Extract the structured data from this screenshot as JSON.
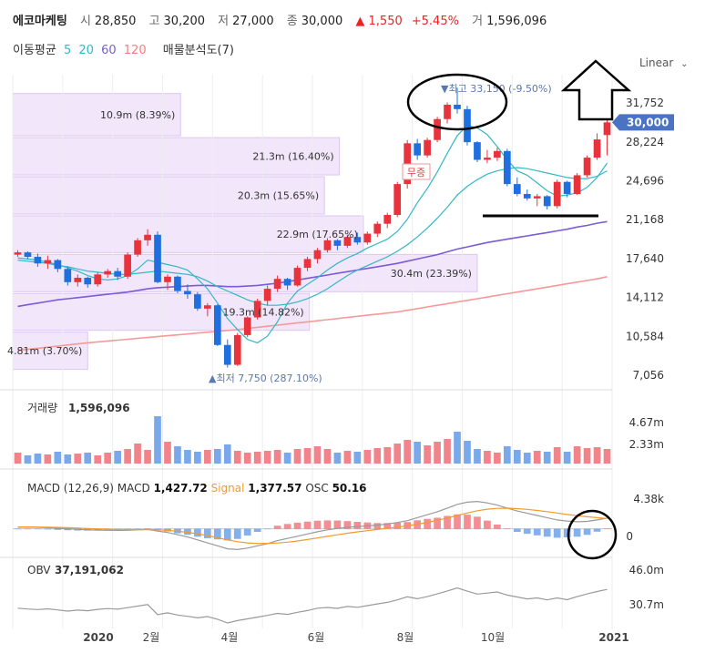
{
  "header": {
    "name": "에코마케팅",
    "open_label": "시",
    "open": "28,850",
    "high_label": "고",
    "high": "30,200",
    "low_label": "저",
    "low": "27,000",
    "close_label": "종",
    "close": "30,000",
    "change": "▲ 1,550",
    "change_pct": "+5.45%",
    "vol_label": "거",
    "vol": "1,596,096"
  },
  "indicators": {
    "ma_label": "이동평균",
    "ma5": "5",
    "ma20": "20",
    "ma60": "60",
    "ma120": "120",
    "vp_label": "매물분석도(7)"
  },
  "scale_toggle": "Linear",
  "colors": {
    "up": "#e8323c",
    "down": "#1f6fde",
    "ma5": "#33b7c7",
    "ma20": "#33b7c7",
    "ma60": "#7b5bd6",
    "ma120": "#f59a98",
    "profile": "#f2e6fb",
    "profile_border": "#dcc6ef",
    "price_tag": "#4a73c4",
    "signal": "#f39a2b",
    "gray_line": "#9a9a9a"
  },
  "chart_data": {
    "type": "candlestick",
    "price_axis": [
      "31,752",
      "28,224",
      "24,696",
      "21,168",
      "17,640",
      "14,112",
      "10,584",
      "7,056"
    ],
    "current_price_tag": "30,000",
    "price_range": [
      7056,
      33500
    ],
    "x_ticks": [
      "2020",
      "2월",
      "4월",
      "6월",
      "8월",
      "10월",
      "2021"
    ],
    "n_bars": 60,
    "candles": [
      [
        18000,
        18400,
        17800,
        18200
      ],
      [
        18200,
        18300,
        17600,
        17800
      ],
      [
        17800,
        18100,
        16900,
        17200
      ],
      [
        17200,
        17900,
        16700,
        17500
      ],
      [
        17500,
        17600,
        16400,
        16700
      ],
      [
        16700,
        16900,
        15200,
        15500
      ],
      [
        15500,
        16200,
        15100,
        15900
      ],
      [
        15900,
        16000,
        15000,
        15300
      ],
      [
        15300,
        16400,
        15100,
        16200
      ],
      [
        16200,
        16700,
        15900,
        16500
      ],
      [
        16500,
        16800,
        15700,
        16000
      ],
      [
        16000,
        18200,
        15800,
        18000
      ],
      [
        18000,
        19500,
        17800,
        19300
      ],
      [
        19300,
        20300,
        18800,
        19800
      ],
      [
        19800,
        20100,
        15400,
        15500
      ],
      [
        15500,
        16200,
        14800,
        16000
      ],
      [
        16000,
        16100,
        14500,
        14700
      ],
      [
        14700,
        15300,
        14000,
        14400
      ],
      [
        14400,
        14600,
        12900,
        13100
      ],
      [
        13100,
        13600,
        12400,
        13400
      ],
      [
        13400,
        13500,
        9700,
        9800
      ],
      [
        9800,
        10300,
        7750,
        8000
      ],
      [
        8000,
        10900,
        7900,
        10700
      ],
      [
        10700,
        12400,
        10500,
        12300
      ],
      [
        12300,
        14000,
        12100,
        13800
      ],
      [
        13800,
        15200,
        13400,
        14900
      ],
      [
        14900,
        16100,
        14600,
        15800
      ],
      [
        15800,
        15900,
        14800,
        15200
      ],
      [
        15200,
        17000,
        15100,
        16800
      ],
      [
        16800,
        17800,
        16500,
        17600
      ],
      [
        17600,
        18600,
        17200,
        18400
      ],
      [
        18400,
        19500,
        18200,
        19300
      ],
      [
        19300,
        19400,
        18400,
        18800
      ],
      [
        18800,
        19800,
        18600,
        19600
      ],
      [
        19600,
        20000,
        18900,
        19100
      ],
      [
        19100,
        20100,
        18900,
        19900
      ],
      [
        19900,
        21000,
        19600,
        20800
      ],
      [
        20800,
        21800,
        20400,
        21600
      ],
      [
        21600,
        24600,
        21400,
        24400
      ],
      [
        24400,
        28400,
        24000,
        28100
      ],
      [
        28100,
        28500,
        26600,
        27000
      ],
      [
        27000,
        28600,
        26800,
        28400
      ],
      [
        28400,
        30500,
        28200,
        30300
      ],
      [
        30300,
        31800,
        29900,
        31600
      ],
      [
        31600,
        33150,
        30800,
        31200
      ],
      [
        31200,
        31500,
        27900,
        28200
      ],
      [
        28200,
        28300,
        26400,
        26600
      ],
      [
        26600,
        27500,
        26300,
        26800
      ],
      [
        26800,
        27700,
        26500,
        27400
      ],
      [
        27400,
        27600,
        24200,
        24400
      ],
      [
        24400,
        25000,
        23300,
        23500
      ],
      [
        23500,
        23900,
        22900,
        23100
      ],
      [
        23100,
        23500,
        22400,
        23300
      ],
      [
        23300,
        23400,
        22100,
        22400
      ],
      [
        22400,
        24800,
        22200,
        24600
      ],
      [
        24600,
        24700,
        23200,
        23500
      ],
      [
        23500,
        25400,
        23400,
        25200
      ],
      [
        25200,
        27000,
        25000,
        26800
      ],
      [
        26800,
        29000,
        26600,
        28450
      ],
      [
        28850,
        30200,
        27000,
        30000
      ]
    ],
    "ma5": [
      17700,
      17600,
      17500,
      17300,
      17100,
      16800,
      16500,
      16100,
      15800,
      15700,
      15800,
      16100,
      16700,
      17500,
      17300,
      17100,
      16900,
      16600,
      15800,
      14900,
      13600,
      12200,
      11200,
      10300,
      10000,
      10600,
      11900,
      13600,
      14700,
      15300,
      15900,
      16600,
      17200,
      17700,
      18100,
      18600,
      19000,
      19400,
      20100,
      21200,
      22700,
      24000,
      25500,
      27200,
      28800,
      29700,
      29500,
      28900,
      27800,
      26600,
      25600,
      25200,
      24500,
      23800,
      23300,
      23400,
      23600,
      24100,
      25000,
      26300
    ],
    "ma20": [
      17500,
      17400,
      17300,
      17200,
      17000,
      16900,
      16700,
      16500,
      16400,
      16300,
      16200,
      16200,
      16300,
      16400,
      16500,
      16400,
      16300,
      16200,
      16000,
      15600,
      15100,
      14700,
      14300,
      13900,
      13600,
      13400,
      13400,
      13500,
      13700,
      14000,
      14400,
      14900,
      15500,
      16100,
      16600,
      17000,
      17400,
      17800,
      18300,
      18900,
      19600,
      20400,
      21300,
      22300,
      23400,
      24200,
      24800,
      25300,
      25600,
      25800,
      25900,
      25800,
      25600,
      25400,
      25200,
      25000,
      24900,
      24900,
      25100,
      25600
    ],
    "ma60": [
      13300,
      13450,
      13600,
      13750,
      13900,
      14000,
      14100,
      14200,
      14300,
      14400,
      14500,
      14600,
      14750,
      14900,
      15000,
      15050,
      15100,
      15150,
      15200,
      15200,
      15150,
      15100,
      15100,
      15150,
      15200,
      15300,
      15400,
      15550,
      15700,
      15850,
      16000,
      16150,
      16300,
      16450,
      16600,
      16750,
      16900,
      17050,
      17200,
      17400,
      17600,
      17800,
      18000,
      18250,
      18500,
      18700,
      18900,
      19100,
      19250,
      19400,
      19550,
      19700,
      19850,
      20000,
      20150,
      20300,
      20500,
      20650,
      20850,
      21000
    ],
    "ma120": [
      9300,
      9400,
      9500,
      9600,
      9700,
      9800,
      9900,
      10000,
      10080,
      10160,
      10240,
      10320,
      10400,
      10480,
      10560,
      10640,
      10720,
      10800,
      10880,
      10960,
      11040,
      11120,
      11200,
      11300,
      11400,
      11500,
      11600,
      11700,
      11800,
      11900,
      12000,
      12100,
      12200,
      12300,
      12400,
      12500,
      12600,
      12700,
      12800,
      12950,
      13100,
      13250,
      13400,
      13550,
      13700,
      13850,
      14000,
      14150,
      14300,
      14450,
      14600,
      14750,
      14900,
      15050,
      15200,
      15350,
      15500,
      15650,
      15800,
      16000
    ],
    "volume_profile": [
      {
        "label": "10.9m (8.39%)",
        "lo": 28700,
        "hi": 32700,
        "frac": 0.28
      },
      {
        "label": "21.3m (16.40%)",
        "lo": 25150,
        "hi": 28700,
        "frac": 0.545
      },
      {
        "label": "20.3m (15.65%)",
        "lo": 21600,
        "hi": 25150,
        "frac": 0.52
      },
      {
        "label": "22.9m (17.65%)",
        "lo": 18100,
        "hi": 21600,
        "frac": 0.585
      },
      {
        "label": "30.4m (23.39%)",
        "lo": 14550,
        "hi": 18100,
        "frac": 0.775
      },
      {
        "label": "19.3m (14.82%)",
        "lo": 11050,
        "hi": 14550,
        "frac": 0.495
      },
      {
        "label": "4.81m (3.70%)",
        "lo": 7500,
        "hi": 11050,
        "frac": 0.125
      }
    ],
    "annotations": {
      "high": "▼최고 33,150 (-9.50%)",
      "low": "▲최저 7,750 (287.10%)",
      "ex_rights": "무증"
    },
    "volume": {
      "title": "거래량",
      "value": "1,596,096",
      "axis": [
        "4.67m",
        "2.33m"
      ],
      "max": 5.4,
      "bars": [
        1.2,
        0.9,
        1.1,
        1.0,
        1.3,
        1.0,
        1.1,
        1.2,
        0.9,
        1.2,
        1.4,
        1.6,
        2.2,
        1.5,
        5.2,
        2.4,
        1.9,
        1.5,
        1.3,
        1.5,
        1.6,
        2.1,
        1.4,
        1.2,
        1.3,
        1.4,
        1.5,
        1.2,
        1.6,
        1.7,
        1.9,
        1.6,
        1.2,
        1.4,
        1.3,
        1.5,
        1.7,
        1.8,
        2.2,
        2.6,
        2.4,
        2.0,
        2.4,
        2.7,
        3.5,
        2.5,
        1.6,
        1.4,
        1.2,
        1.9,
        1.5,
        1.2,
        1.4,
        1.3,
        1.8,
        1.3,
        1.9,
        1.7,
        1.8,
        1.6
      ]
    },
    "macd": {
      "title": "MACD (12,26,9)",
      "macd_label": "MACD",
      "macd_value": "1,427.72",
      "signal_label": "Signal",
      "signal_value": "1,377.57",
      "osc_label": "OSC",
      "osc_value": "50.16",
      "axis": [
        "4.38k",
        "0"
      ],
      "range": [
        -3000,
        5000
      ],
      "macd": [
        200,
        250,
        200,
        150,
        80,
        0,
        -80,
        -150,
        -180,
        -200,
        -220,
        -200,
        -150,
        -80,
        -300,
        -500,
        -800,
        -1100,
        -1500,
        -1900,
        -2300,
        -2700,
        -2800,
        -2600,
        -2300,
        -2000,
        -1600,
        -1300,
        -1000,
        -700,
        -400,
        -150,
        50,
        200,
        300,
        400,
        500,
        650,
        850,
        1100,
        1500,
        1900,
        2300,
        2800,
        3300,
        3600,
        3700,
        3500,
        3200,
        2800,
        2400,
        2100,
        1800,
        1500,
        1200,
        1050,
        950,
        1000,
        1200,
        1428
      ],
      "signal": [
        250,
        250,
        240,
        220,
        190,
        150,
        100,
        40,
        -10,
        -50,
        -90,
        -110,
        -120,
        -110,
        -150,
        -220,
        -330,
        -480,
        -680,
        -920,
        -1200,
        -1500,
        -1750,
        -1900,
        -1980,
        -1980,
        -1920,
        -1800,
        -1640,
        -1450,
        -1240,
        -1020,
        -810,
        -600,
        -420,
        -260,
        -100,
        50,
        220,
        400,
        620,
        870,
        1150,
        1460,
        1800,
        2130,
        2440,
        2650,
        2760,
        2780,
        2720,
        2620,
        2480,
        2320,
        2130,
        1940,
        1770,
        1630,
        1500,
        1378
      ]
    },
    "obv": {
      "title": "OBV",
      "value": "37,191,062",
      "axis": [
        "46.0m",
        "30.7m"
      ],
      "range": [
        18,
        50
      ],
      "values": [
        27.5,
        27.1,
        26.8,
        27.2,
        26.6,
        26.0,
        26.5,
        26.2,
        26.9,
        27.3,
        27.0,
        27.8,
        28.6,
        29.4,
        24.2,
        25.1,
        24.0,
        23.3,
        22.5,
        23.2,
        21.8,
        19.9,
        21.1,
        22.0,
        22.9,
        23.8,
        24.8,
        24.3,
        25.4,
        26.3,
        27.5,
        27.9,
        27.4,
        28.4,
        28.0,
        28.8,
        29.7,
        30.5,
        31.8,
        33.4,
        32.4,
        33.5,
        34.9,
        36.4,
        38.0,
        36.3,
        34.8,
        35.3,
        35.9,
        34.3,
        33.3,
        32.3,
        32.8,
        31.8,
        32.8,
        31.9,
        33.5,
        34.9,
        36.1,
        37.2
      ]
    }
  }
}
